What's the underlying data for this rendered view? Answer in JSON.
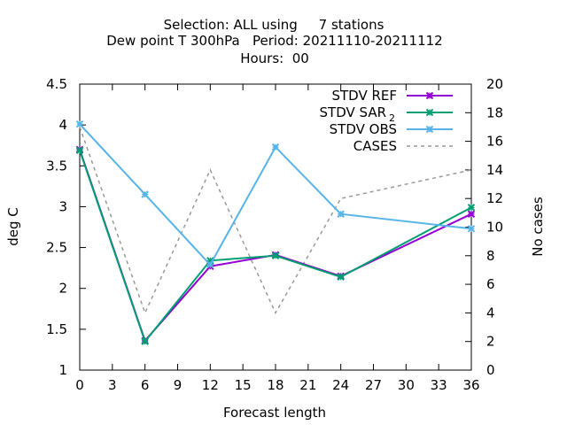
{
  "chart_data": {
    "type": "line",
    "title_lines": [
      "Selection: ALL using     7 stations",
      "Dew point T 300hPa   Period: 20211110-20211112",
      "Hours:  00"
    ],
    "xlabel": "Forecast length",
    "ylabel": "deg C",
    "y2label": "No cases",
    "xlim": [
      0,
      36
    ],
    "ylim": [
      1,
      4.5
    ],
    "y2lim": [
      0,
      20
    ],
    "x_ticks": [
      0,
      3,
      6,
      9,
      12,
      15,
      18,
      21,
      24,
      27,
      30,
      33,
      36
    ],
    "y_ticks": [
      "1",
      "1.5",
      "2",
      "2.5",
      "3",
      "3.5",
      "4",
      "4.5"
    ],
    "y2_ticks": [
      "0",
      "2",
      "4",
      "6",
      "8",
      "10",
      "12",
      "14",
      "16",
      "18",
      "20"
    ],
    "grid": false,
    "legend_position": "top-right",
    "x": [
      0,
      6,
      12,
      18,
      24,
      36
    ],
    "series": [
      {
        "name": "STDV REF",
        "legend": [
          "STDV REF"
        ],
        "axis": "left",
        "color": "#9400d3",
        "marker": "x",
        "dash": false,
        "values": [
          3.7,
          1.36,
          2.27,
          2.41,
          2.15,
          2.91
        ]
      },
      {
        "name": "STDV SAR 2",
        "legend": [
          "STDV SAR ",
          "2"
        ],
        "axis": "left",
        "color": "#009e73",
        "marker": "x",
        "dash": false,
        "values": [
          3.69,
          1.35,
          2.34,
          2.4,
          2.14,
          2.99
        ]
      },
      {
        "name": "STDV OBS",
        "legend": [
          "STDV OBS"
        ],
        "axis": "left",
        "color": "#56b4e9",
        "marker": "x",
        "dash": false,
        "values": [
          4.01,
          3.15,
          2.29,
          3.73,
          2.91,
          2.73
        ]
      },
      {
        "name": "CASES",
        "legend": [
          "CASES"
        ],
        "axis": "right",
        "color": "#999999",
        "marker": "none",
        "dash": true,
        "values": [
          17,
          4,
          14,
          4,
          12,
          14
        ]
      }
    ]
  }
}
